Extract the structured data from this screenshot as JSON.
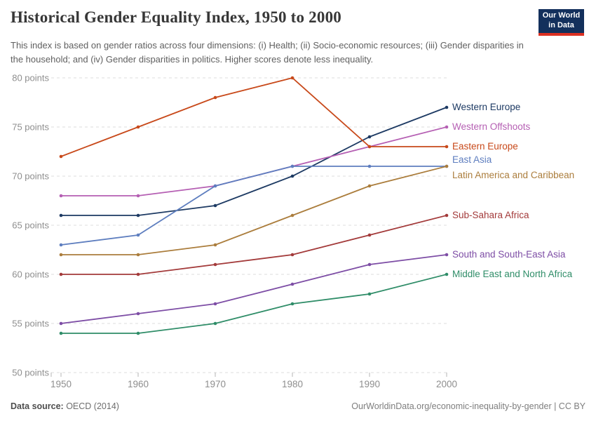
{
  "header": {
    "title": "Historical Gender Equality Index, 1950 to 2000",
    "subtitle": "This index is based on gender ratios across four dimensions: (i) Health; (ii) Socio-economic resources; (iii) Gender disparities in the household; and (iv) Gender disparities in politics. Higher scores denote less inequality.",
    "logo": {
      "line1": "Our World",
      "line2": "in Data",
      "bg_color": "#13305c",
      "stripe_color": "#dc3022"
    }
  },
  "chart_data": {
    "type": "line",
    "title": "Historical Gender Equality Index, 1950 to 2000",
    "x": [
      1950,
      1960,
      1970,
      1980,
      1990,
      2000
    ],
    "x_tick_labels": [
      "1950",
      "1960",
      "1970",
      "1980",
      "1990",
      "2000"
    ],
    "xlim": [
      1950,
      2000
    ],
    "ylim": [
      50,
      80
    ],
    "y_ticks": [
      50,
      55,
      60,
      65,
      70,
      75,
      80
    ],
    "y_tick_suffix": " points",
    "grid": "horizontal-dashed",
    "legend_position": "right-end-of-lines",
    "series": [
      {
        "name": "Western Europe",
        "color": "#1d3a63",
        "values": [
          66,
          66,
          67,
          70,
          74,
          77
        ],
        "label_dy": 0
      },
      {
        "name": "Western Offshoots",
        "color": "#b55fb3",
        "values": [
          68,
          68,
          69,
          71,
          73,
          75
        ],
        "label_dy": 0
      },
      {
        "name": "Eastern Europe",
        "color": "#c8491a",
        "values": [
          72,
          75,
          78,
          80,
          73,
          73
        ],
        "label_dy": 0
      },
      {
        "name": "East Asia",
        "color": "#5e7ebf",
        "values": [
          63,
          64,
          69,
          71,
          71,
          71
        ],
        "label_dy": -9
      },
      {
        "name": "Latin America and Caribbean",
        "color": "#ab7d3c",
        "values": [
          62,
          62,
          63,
          66,
          69,
          71
        ],
        "label_dy": 13
      },
      {
        "name": "Sub-Sahara Africa",
        "color": "#a33a3a",
        "values": [
          60,
          60,
          61,
          62,
          64,
          66
        ],
        "label_dy": 0
      },
      {
        "name": "South and South-East Asia",
        "color": "#7d4da5",
        "values": [
          55,
          56,
          57,
          59,
          61,
          62
        ],
        "label_dy": 0
      },
      {
        "name": "Middle East and North Africa",
        "color": "#2f8d68",
        "values": [
          54,
          54,
          55,
          57,
          58,
          60
        ],
        "label_dy": 0
      }
    ],
    "axis_colors": {
      "grid": "#dedede",
      "tick": "#b5b5b5",
      "text": "#8e8e8e"
    }
  },
  "footer": {
    "source_label": "Data source:",
    "source_value": " OECD (2014)",
    "credit": "OurWorldinData.org/economic-inequality-by-gender | CC BY"
  }
}
